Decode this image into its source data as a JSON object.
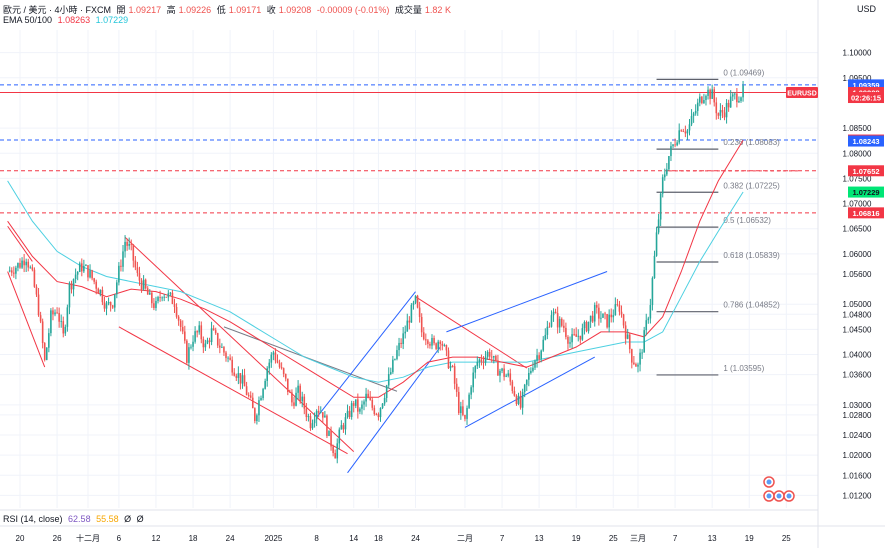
{
  "header": {
    "symbol_line": "歐元 / 美元 · 4小時 · FXCM",
    "open_label": "開",
    "open_value": "1.09217",
    "high_label": "高",
    "high_value": "1.09226",
    "low_label": "低",
    "low_value": "1.09171",
    "close_label": "收",
    "close_value": "1.09208",
    "change_value": "-0.00009 (-0.01%)",
    "volume_label": "成交量",
    "volume_value": "1.82 K",
    "ema_label": "EMA 50/100",
    "ema50_value": "1.08263",
    "ema100_value": "1.07229"
  },
  "currency": "USD",
  "rsi": {
    "label": "RSI (14, close)",
    "value1": "62.58",
    "value2": "55.58",
    "extra1": "Ø",
    "extra2": "Ø"
  },
  "colors": {
    "up": "#26a69a",
    "down": "#ef5350",
    "ema50": "#f23645",
    "ema100": "#4dd0e1",
    "channel_blue": "#2962ff",
    "channel_red": "#f23645",
    "fib": "#787b86",
    "price_label": "#f23645",
    "blue_label": "#2962ff",
    "cyan_label": "#00e676"
  },
  "chart_data": {
    "type": "candlestick",
    "symbol": "EURUSD",
    "timeframe": "4小時",
    "ylim": [
      1.0095,
      1.1045
    ],
    "y_ticks": [
      "1.10000",
      "1.09500",
      "1.08500",
      "1.08000",
      "1.07500",
      "1.07000",
      "1.06500",
      "1.06000",
      "1.05600",
      "1.05000",
      "1.04800",
      "1.04500",
      "1.04000",
      "1.03600",
      "1.03000",
      "1.02800",
      "1.02400",
      "1.02000",
      "1.01600",
      "1.01200"
    ],
    "y_tick_values": [
      1.1,
      1.095,
      1.085,
      1.08,
      1.075,
      1.07,
      1.065,
      1.06,
      1.056,
      1.05,
      1.048,
      1.045,
      1.04,
      1.036,
      1.03,
      1.028,
      1.024,
      1.02,
      1.016,
      1.012
    ],
    "x_ticks": [
      {
        "label": "20",
        "day": 0
      },
      {
        "label": "26",
        "day": 6
      },
      {
        "label": "十二月",
        "day": 11
      },
      {
        "label": "6",
        "day": 16
      },
      {
        "label": "12",
        "day": 22
      },
      {
        "label": "18",
        "day": 28
      },
      {
        "label": "24",
        "day": 34
      },
      {
        "label": "2025",
        "day": 41
      },
      {
        "label": "8",
        "day": 48
      },
      {
        "label": "14",
        "day": 54
      },
      {
        "label": "18",
        "day": 58
      },
      {
        "label": "24",
        "day": 64
      },
      {
        "label": "二月",
        "day": 72
      },
      {
        "label": "7",
        "day": 78
      },
      {
        "label": "13",
        "day": 84
      },
      {
        "label": "19",
        "day": 90
      },
      {
        "label": "25",
        "day": 96
      },
      {
        "label": "三月",
        "day": 100
      },
      {
        "label": "7",
        "day": 106
      },
      {
        "label": "13",
        "day": 112
      },
      {
        "label": "19",
        "day": 118
      },
      {
        "label": "25",
        "day": 124
      }
    ],
    "price_path": [
      [
        -2,
        1.0565
      ],
      [
        0,
        1.058
      ],
      [
        1,
        1.0595
      ],
      [
        2,
        1.0555
      ],
      [
        3,
        1.049
      ],
      [
        4,
        1.0385
      ],
      [
        5,
        1.0475
      ],
      [
        6,
        1.049
      ],
      [
        7,
        1.0435
      ],
      [
        8,
        1.0535
      ],
      [
        9,
        1.056
      ],
      [
        10,
        1.0575
      ],
      [
        11,
        1.0565
      ],
      [
        12,
        1.0545
      ],
      [
        13,
        1.0525
      ],
      [
        14,
        1.0495
      ],
      [
        15,
        1.0505
      ],
      [
        16,
        1.0565
      ],
      [
        17,
        1.0625
      ],
      [
        18,
        1.0605
      ],
      [
        19,
        1.0555
      ],
      [
        20,
        1.0535
      ],
      [
        21,
        1.051
      ],
      [
        22,
        1.0495
      ],
      [
        23,
        1.0525
      ],
      [
        24,
        1.0515
      ],
      [
        25,
        1.0505
      ],
      [
        26,
        1.0455
      ],
      [
        27,
        1.0395
      ],
      [
        28,
        1.0435
      ],
      [
        29,
        1.0445
      ],
      [
        30,
        1.0415
      ],
      [
        31,
        1.0445
      ],
      [
        32,
        1.0425
      ],
      [
        33,
        1.0405
      ],
      [
        34,
        1.0385
      ],
      [
        35,
        1.0365
      ],
      [
        36,
        1.0345
      ],
      [
        37,
        1.0315
      ],
      [
        38,
        1.0275
      ],
      [
        39,
        1.0325
      ],
      [
        40,
        1.0375
      ],
      [
        41,
        1.0405
      ],
      [
        42,
        1.0375
      ],
      [
        43,
        1.0345
      ],
      [
        44,
        1.0305
      ],
      [
        45,
        1.0325
      ],
      [
        46,
        1.0295
      ],
      [
        47,
        1.0265
      ],
      [
        48,
        1.0295
      ],
      [
        49,
        1.0285
      ],
      [
        50,
        1.0235
      ],
      [
        51,
        1.0205
      ],
      [
        52,
        1.0255
      ],
      [
        53,
        1.0275
      ],
      [
        54,
        1.0305
      ],
      [
        55,
        1.0285
      ],
      [
        56,
        1.0315
      ],
      [
        57,
        1.0295
      ],
      [
        58,
        1.0285
      ],
      [
        59,
        1.0325
      ],
      [
        60,
        1.0365
      ],
      [
        61,
        1.0405
      ],
      [
        62,
        1.0435
      ],
      [
        63,
        1.0475
      ],
      [
        64,
        1.0505
      ],
      [
        65,
        1.0445
      ],
      [
        66,
        1.0435
      ],
      [
        67,
        1.0415
      ],
      [
        68,
        1.0435
      ],
      [
        69,
        1.0395
      ],
      [
        70,
        1.0365
      ],
      [
        71,
        1.0295
      ],
      [
        72,
        1.0265
      ],
      [
        73,
        1.0345
      ],
      [
        74,
        1.0385
      ],
      [
        75,
        1.0395
      ],
      [
        76,
        1.0405
      ],
      [
        77,
        1.0375
      ],
      [
        78,
        1.0365
      ],
      [
        79,
        1.0355
      ],
      [
        80,
        1.0325
      ],
      [
        81,
        1.0295
      ],
      [
        82,
        1.0345
      ],
      [
        83,
        1.0385
      ],
      [
        84,
        1.0405
      ],
      [
        85,
        1.0435
      ],
      [
        86,
        1.0485
      ],
      [
        87,
        1.0465
      ],
      [
        88,
        1.0455
      ],
      [
        89,
        1.0425
      ],
      [
        90,
        1.0435
      ],
      [
        91,
        1.0445
      ],
      [
        92,
        1.0465
      ],
      [
        93,
        1.0485
      ],
      [
        94,
        1.0475
      ],
      [
        95,
        1.0465
      ],
      [
        96,
        1.0485
      ],
      [
        97,
        1.0495
      ],
      [
        98,
        1.0445
      ],
      [
        99,
        1.0395
      ],
      [
        100,
        1.0375
      ],
      [
        101,
        1.0435
      ],
      [
        102,
        1.0505
      ],
      [
        103,
        1.0635
      ],
      [
        104,
        1.0745
      ],
      [
        105,
        1.0795
      ],
      [
        106,
        1.0825
      ],
      [
        107,
        1.0855
      ],
      [
        108,
        1.0845
      ],
      [
        109,
        1.0875
      ],
      [
        110,
        1.0905
      ],
      [
        111,
        1.0925
      ],
      [
        112,
        1.0915
      ],
      [
        113,
        1.0875
      ],
      [
        114,
        1.0885
      ],
      [
        115,
        1.0905
      ],
      [
        116,
        1.0915
      ],
      [
        117,
        1.0921
      ]
    ],
    "ema50_path": [
      [
        -2,
        1.0665
      ],
      [
        2,
        1.0595
      ],
      [
        6,
        1.0545
      ],
      [
        10,
        1.0535
      ],
      [
        14,
        1.0515
      ],
      [
        18,
        1.053
      ],
      [
        22,
        1.0525
      ],
      [
        26,
        1.051
      ],
      [
        30,
        1.049
      ],
      [
        34,
        1.0465
      ],
      [
        38,
        1.0435
      ],
      [
        42,
        1.0405
      ],
      [
        46,
        1.0375
      ],
      [
        50,
        1.0345
      ],
      [
        54,
        1.0315
      ],
      [
        58,
        1.0315
      ],
      [
        62,
        1.0345
      ],
      [
        66,
        1.0385
      ],
      [
        70,
        1.0395
      ],
      [
        74,
        1.0395
      ],
      [
        78,
        1.0385
      ],
      [
        82,
        1.0375
      ],
      [
        86,
        1.0395
      ],
      [
        90,
        1.0415
      ],
      [
        94,
        1.0445
      ],
      [
        98,
        1.0445
      ],
      [
        101,
        1.0435
      ],
      [
        104,
        1.0475
      ],
      [
        107,
        1.0565
      ],
      [
        110,
        1.0665
      ],
      [
        113,
        1.0745
      ],
      [
        117,
        1.0826
      ]
    ],
    "ema100_path": [
      [
        -2,
        1.0745
      ],
      [
        2,
        1.0665
      ],
      [
        6,
        1.0605
      ],
      [
        10,
        1.0575
      ],
      [
        14,
        1.0555
      ],
      [
        18,
        1.0545
      ],
      [
        22,
        1.0535
      ],
      [
        26,
        1.0525
      ],
      [
        30,
        1.0505
      ],
      [
        34,
        1.0485
      ],
      [
        38,
        1.0455
      ],
      [
        42,
        1.0425
      ],
      [
        46,
        1.0395
      ],
      [
        50,
        1.0375
      ],
      [
        54,
        1.0355
      ],
      [
        58,
        1.0345
      ],
      [
        62,
        1.0355
      ],
      [
        66,
        1.0375
      ],
      [
        70,
        1.0385
      ],
      [
        74,
        1.0385
      ],
      [
        78,
        1.0385
      ],
      [
        82,
        1.0385
      ],
      [
        86,
        1.0395
      ],
      [
        90,
        1.0405
      ],
      [
        94,
        1.0415
      ],
      [
        98,
        1.0425
      ],
      [
        101,
        1.0425
      ],
      [
        104,
        1.0445
      ],
      [
        107,
        1.0515
      ],
      [
        110,
        1.0585
      ],
      [
        113,
        1.0645
      ],
      [
        117,
        1.0723
      ]
    ],
    "fib_levels": [
      {
        "label": "0 (1.09469)",
        "value": 1.09469
      },
      {
        "label": "0.236 (1.08083)",
        "value": 1.08083
      },
      {
        "label": "0.382 (1.07225)",
        "value": 1.07225
      },
      {
        "label": "0.5 (1.06532)",
        "value": 1.06532
      },
      {
        "label": "0.618 (1.05839)",
        "value": 1.05839
      },
      {
        "label": "0.786 (1.04852)",
        "value": 1.04852
      },
      {
        "label": "1 (1.03595)",
        "value": 1.03595
      }
    ],
    "fib_day_range": [
      103,
      113
    ],
    "horizontal_lines": [
      {
        "value": 1.09359,
        "style": "dashed",
        "color_key": "blue_label"
      },
      {
        "value": 1.09208,
        "style": "solid",
        "color_key": "price_label"
      },
      {
        "value": 1.08263,
        "style": "dashed",
        "color_key": "blue_label"
      },
      {
        "value": 1.07652,
        "style": "dashed",
        "color_key": "price_label"
      },
      {
        "value": 1.06816,
        "style": "dashed",
        "color_key": "price_label"
      }
    ],
    "price_labels": [
      {
        "text": "1.09359",
        "value": 1.09359,
        "color_key": "blue_label"
      },
      {
        "text": "EURUSD",
        "value": 1.09208,
        "color_key": "price_label",
        "side": "left"
      },
      {
        "text": "1.09208",
        "value": 1.09208,
        "color_key": "price_label"
      },
      {
        "text": "02:26:15",
        "value": 1.09108,
        "color_key": "price_label"
      },
      {
        "text": "1.08263",
        "value": 1.08263,
        "color_key": "price_label"
      },
      {
        "text": "1.08243",
        "value": 1.08243,
        "color_key": "blue_label"
      },
      {
        "text": "1.07652",
        "value": 1.07652,
        "color_key": "price_label"
      },
      {
        "text": "1.07229",
        "value": 1.07229,
        "color_key": "cyan_label"
      },
      {
        "text": "1.06816",
        "value": 1.06816,
        "color_key": "price_label"
      }
    ],
    "channels": [
      {
        "color_key": "channel_red",
        "points": [
          [
            -2,
            1.0565
          ],
          [
            4,
            1.0375
          ]
        ]
      },
      {
        "color_key": "channel_red",
        "points": [
          [
            -2,
            1.0655
          ],
          [
            2,
            1.0585
          ]
        ]
      },
      {
        "color_key": "channel_red",
        "points": [
          [
            17,
            1.0633
          ],
          [
            54,
            1.0207
          ]
        ]
      },
      {
        "color_key": "channel_red",
        "points": [
          [
            16,
            1.0455
          ],
          [
            53,
            1.0203
          ]
        ]
      },
      {
        "color_key": "channel_red",
        "points": [
          [
            64,
            1.0515
          ],
          [
            82,
            1.0373
          ]
        ]
      },
      {
        "color_key": "fib",
        "points": [
          [
            33,
            1.0455
          ],
          [
            61,
            1.0327
          ]
        ]
      },
      {
        "color_key": "channel_blue",
        "points": [
          [
            53,
            1.0165
          ],
          [
            68,
            1.0415
          ]
        ]
      },
      {
        "color_key": "channel_blue",
        "points": [
          [
            48,
            1.0275
          ],
          [
            64,
            1.0525
          ]
        ]
      },
      {
        "color_key": "channel_blue",
        "points": [
          [
            72,
            1.0255
          ],
          [
            93,
            1.0395
          ]
        ]
      },
      {
        "color_key": "channel_blue",
        "points": [
          [
            69,
            1.0445
          ],
          [
            95,
            1.0565
          ]
        ]
      },
      {
        "color_key": "price_label",
        "points": [
          [
            105,
            1.0765
          ],
          [
            126,
            1.0765
          ]
        ],
        "style": "dashed"
      }
    ]
  }
}
